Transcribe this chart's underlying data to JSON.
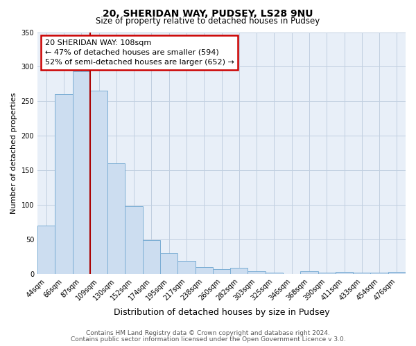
{
  "title1": "20, SHERIDAN WAY, PUDSEY, LS28 9NU",
  "title2": "Size of property relative to detached houses in Pudsey",
  "xlabel": "Distribution of detached houses by size in Pudsey",
  "ylabel": "Number of detached properties",
  "bar_labels": [
    "44sqm",
    "66sqm",
    "87sqm",
    "109sqm",
    "130sqm",
    "152sqm",
    "174sqm",
    "195sqm",
    "217sqm",
    "238sqm",
    "260sqm",
    "282sqm",
    "303sqm",
    "325sqm",
    "346sqm",
    "368sqm",
    "390sqm",
    "411sqm",
    "433sqm",
    "454sqm",
    "476sqm"
  ],
  "bar_values": [
    70,
    260,
    293,
    265,
    160,
    98,
    49,
    30,
    19,
    10,
    7,
    9,
    4,
    2,
    0,
    4,
    2,
    3,
    2,
    2,
    3
  ],
  "bar_color": "#ccddf0",
  "bar_edge_color": "#7aadd4",
  "ylim": [
    0,
    350
  ],
  "yticks": [
    0,
    50,
    100,
    150,
    200,
    250,
    300,
    350
  ],
  "property_line_x": 2.5,
  "property_line_color": "#aa0000",
  "annotation_title": "20 SHERIDAN WAY: 108sqm",
  "annotation_line1": "← 47% of detached houses are smaller (594)",
  "annotation_line2": "52% of semi-detached houses are larger (652) →",
  "annotation_box_color": "#ffffff",
  "annotation_box_edge": "#cc0000",
  "plot_bg_color": "#e8eff8",
  "fig_bg_color": "#ffffff",
  "footer1": "Contains HM Land Registry data © Crown copyright and database right 2024.",
  "footer2": "Contains public sector information licensed under the Open Government Licence v 3.0."
}
